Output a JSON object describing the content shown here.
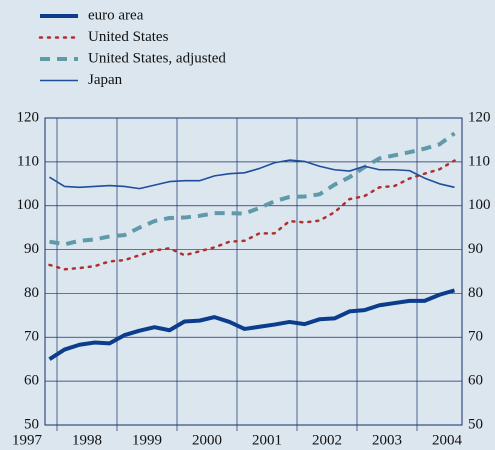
{
  "chart_data": {
    "type": "line",
    "categories": [
      "1997",
      "1998",
      "1999",
      "2000",
      "2001",
      "2002",
      "2003",
      "2004"
    ],
    "x": [
      1997.875,
      1998.125,
      1998.375,
      1998.625,
      1998.875,
      1999.125,
      1999.375,
      1999.625,
      1999.875,
      2000.125,
      2000.375,
      2000.625,
      2000.875,
      2001.125,
      2001.375,
      2001.625,
      2001.875,
      2002.125,
      2002.375,
      2002.625,
      2002.875,
      2003.125,
      2003.375,
      2003.625,
      2003.875,
      2004.125,
      2004.375,
      2004.625
    ],
    "series": [
      {
        "name": "euro area",
        "color": "#0b3d8c",
        "width": 4,
        "style": "solid",
        "values": [
          65.0,
          67.2,
          68.3,
          68.8,
          68.6,
          70.5,
          71.5,
          72.3,
          71.6,
          73.6,
          73.8,
          74.6,
          73.5,
          71.9,
          72.4,
          72.9,
          73.5,
          73.0,
          74.1,
          74.3,
          75.9,
          76.2,
          77.3,
          77.8,
          78.3,
          78.3,
          79.7,
          80.7
        ]
      },
      {
        "name": "United States",
        "color": "#b03030",
        "width": 2.5,
        "style": "dotted",
        "values": [
          86.5,
          85.5,
          85.8,
          86.2,
          87.3,
          87.6,
          88.7,
          89.8,
          90.3,
          88.7,
          89.6,
          90.5,
          91.8,
          92.0,
          93.7,
          93.7,
          96.5,
          96.2,
          96.6,
          98.5,
          101.5,
          102.2,
          104.2,
          104.5,
          106.2,
          107.3,
          108.3,
          110.3
        ]
      },
      {
        "name": "United States, adjusted",
        "color": "#5e9aa8",
        "width": 4,
        "style": "dashed",
        "values": [
          91.8,
          91.2,
          92.0,
          92.3,
          93.0,
          93.3,
          95.0,
          96.5,
          97.2,
          97.3,
          97.7,
          98.3,
          98.3,
          98.2,
          99.5,
          101.0,
          102.0,
          102.1,
          102.6,
          104.8,
          106.5,
          108.8,
          110.8,
          111.5,
          112.2,
          113.0,
          114.0,
          116.5
        ]
      },
      {
        "name": "Japan",
        "color": "#1f4e9a",
        "width": 1.6,
        "style": "solid",
        "values": [
          106.5,
          104.4,
          104.2,
          104.4,
          104.6,
          104.4,
          103.9,
          104.7,
          105.5,
          105.7,
          105.7,
          106.8,
          107.3,
          107.5,
          108.5,
          109.8,
          110.4,
          110.1,
          109.0,
          108.2,
          107.9,
          109.0,
          108.2,
          108.2,
          108.0,
          106.3,
          105.0,
          104.2
        ]
      }
    ],
    "xlim": [
      1997.8,
      2004.75
    ],
    "xticks": [
      1998,
      1999,
      2000,
      2001,
      2002,
      2003,
      2004
    ],
    "ylim": [
      50,
      120
    ],
    "yticks": [
      50,
      60,
      70,
      80,
      90,
      100,
      110,
      120
    ],
    "grid": true,
    "legend": "top-left"
  }
}
